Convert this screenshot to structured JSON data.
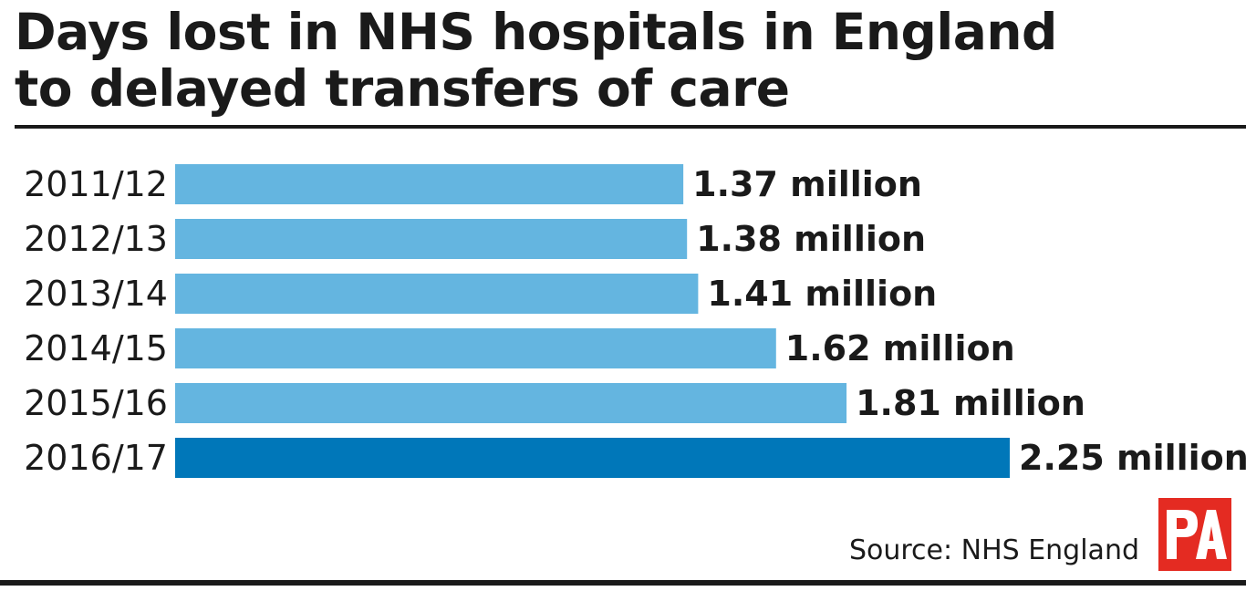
{
  "title": {
    "line1": "Days lost in NHS hospitals in England",
    "line2": "to delayed transfers of care"
  },
  "source": "Source: NHS England",
  "logo": {
    "text": "PA",
    "color": "#e42b22"
  },
  "colors": {
    "bar": "#64b5e0",
    "highlight": "#0077b9"
  },
  "chart_data": {
    "type": "bar",
    "orientation": "horizontal",
    "categories": [
      "2011/12",
      "2012/13",
      "2013/14",
      "2014/15",
      "2015/16",
      "2016/17"
    ],
    "values": [
      1.37,
      1.38,
      1.41,
      1.62,
      1.81,
      2.25
    ],
    "value_labels": [
      "1.37 million",
      "1.38 million",
      "1.41 million",
      "1.62 million",
      "1.81 million",
      "2.25 million"
    ],
    "highlight_index": 5,
    "unit": "million",
    "xlim": [
      0,
      2.25
    ],
    "grid": false,
    "legend": "none"
  }
}
